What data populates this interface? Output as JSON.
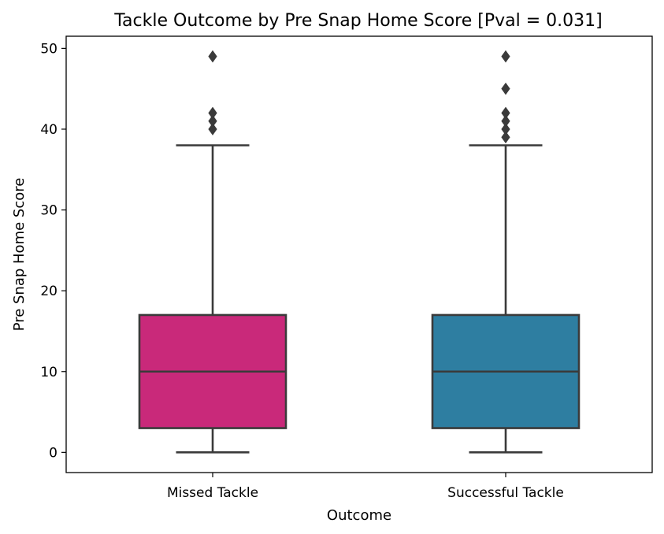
{
  "chart_data": {
    "type": "box",
    "title": "Tackle Outcome by Pre Snap Home Score [Pval = 0.031]",
    "xlabel": "Outcome",
    "ylabel": "Pre Snap Home Score",
    "ylim": [
      -2.5,
      51.5
    ],
    "yticks": [
      0,
      10,
      20,
      30,
      40,
      50
    ],
    "grid": false,
    "categories": [
      "Missed Tackle",
      "Successful Tackle"
    ],
    "boxes": [
      {
        "category": "Missed Tackle",
        "color": "#c9297a",
        "whisker_low": 0,
        "q1": 3,
        "median": 10,
        "q3": 17,
        "whisker_high": 38,
        "outliers": [
          40,
          41,
          42,
          49
        ]
      },
      {
        "category": "Successful Tackle",
        "color": "#2e7ea1",
        "whisker_low": 0,
        "q1": 3,
        "median": 10,
        "q3": 17,
        "whisker_high": 38,
        "outliers": [
          39,
          40,
          41,
          42,
          45,
          49
        ]
      }
    ]
  }
}
